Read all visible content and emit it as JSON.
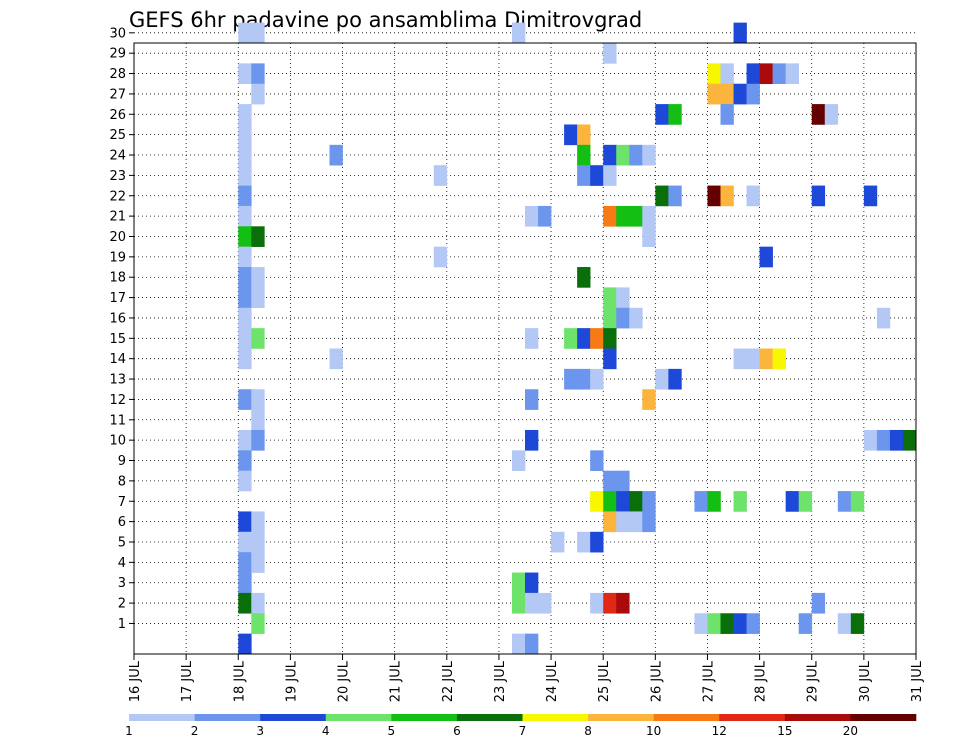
{
  "chart_data": {
    "type": "heatmap",
    "title": "GEFS 6hr padavine po ansamblima Dimitrovgrad",
    "xlabel": "",
    "ylabel": "",
    "x_ticks": [
      "16 JUL",
      "17 JUL",
      "18 JUL",
      "19 JUL",
      "20 JUL",
      "21 JUL",
      "22 JUL",
      "23 JUL",
      "24 JUL",
      "25 JUL",
      "26 JUL",
      "27 JUL",
      "28 JUL",
      "29 JUL",
      "30 JUL",
      "31 JUL"
    ],
    "y_ticks": [
      "1",
      "2",
      "3",
      "4",
      "5",
      "6",
      "7",
      "8",
      "9",
      "10",
      "11",
      "12",
      "13",
      "14",
      "15",
      "16",
      "17",
      "18",
      "19",
      "20",
      "21",
      "22",
      "23",
      "24",
      "25",
      "26",
      "27",
      "28",
      "29",
      "30"
    ],
    "x_range": [
      "16 JUL 00",
      "31 JUL 00"
    ],
    "y_range": [
      0,
      30
    ],
    "grid": true,
    "legend": "bottom colorbar",
    "colorbar": {
      "ticks": [
        "1",
        "2",
        "3",
        "4",
        "5",
        "6",
        "7",
        "8",
        "10",
        "12",
        "15",
        "20"
      ],
      "colors": [
        "#b4c8f5",
        "#6c96ee",
        "#1e48d8",
        "#6ee36c",
        "#14bf14",
        "#0a6e0a",
        "#f7f700",
        "#fbb43c",
        "#f77a14",
        "#e02814",
        "#aa0a0a",
        "#640000"
      ]
    },
    "cells": [
      {
        "t": "18 JUL 00",
        "member": 30,
        "level": 0
      },
      {
        "t": "18 JUL 06",
        "member": 30,
        "level": 0
      },
      {
        "t": "23 JUL 06",
        "member": 30,
        "level": 0
      },
      {
        "t": "27 JUL 12",
        "member": 30,
        "level": 2
      },
      {
        "t": "25 JUL 00",
        "member": 29,
        "level": 0
      },
      {
        "t": "18 JUL 00",
        "member": 28,
        "level": 0
      },
      {
        "t": "18 JUL 06",
        "member": 28,
        "level": 1
      },
      {
        "t": "27 JUL 00",
        "member": 28,
        "level": 6
      },
      {
        "t": "27 JUL 06",
        "member": 28,
        "level": 0
      },
      {
        "t": "27 JUL 18",
        "member": 28,
        "level": 2
      },
      {
        "t": "28 JUL 00",
        "member": 28,
        "level": 10
      },
      {
        "t": "28 JUL 06",
        "member": 28,
        "level": 1
      },
      {
        "t": "28 JUL 12",
        "member": 28,
        "level": 0
      },
      {
        "t": "18 JUL 06",
        "member": 27,
        "level": 0
      },
      {
        "t": "27 JUL 00",
        "member": 27,
        "level": 7
      },
      {
        "t": "27 JUL 06",
        "member": 27,
        "level": 7
      },
      {
        "t": "27 JUL 12",
        "member": 27,
        "level": 2
      },
      {
        "t": "27 JUL 18",
        "member": 27,
        "level": 1
      },
      {
        "t": "18 JUL 00",
        "member": 26,
        "level": 0
      },
      {
        "t": "26 JUL 00",
        "member": 26,
        "level": 2
      },
      {
        "t": "26 JUL 06",
        "member": 26,
        "level": 4
      },
      {
        "t": "27 JUL 06",
        "member": 26,
        "level": 1
      },
      {
        "t": "29 JUL 00",
        "member": 26,
        "level": 11
      },
      {
        "t": "29 JUL 06",
        "member": 26,
        "level": 0
      },
      {
        "t": "18 JUL 00",
        "member": 25,
        "level": 0
      },
      {
        "t": "24 JUL 06",
        "member": 25,
        "level": 2
      },
      {
        "t": "24 JUL 12",
        "member": 25,
        "level": 7
      },
      {
        "t": "18 JUL 00",
        "member": 24,
        "level": 0
      },
      {
        "t": "19 JUL 18",
        "member": 24,
        "level": 1
      },
      {
        "t": "24 JUL 12",
        "member": 24,
        "level": 4
      },
      {
        "t": "25 JUL 00",
        "member": 24,
        "level": 2
      },
      {
        "t": "25 JUL 06",
        "member": 24,
        "level": 3
      },
      {
        "t": "25 JUL 12",
        "member": 24,
        "level": 1
      },
      {
        "t": "25 JUL 18",
        "member": 24,
        "level": 0
      },
      {
        "t": "18 JUL 00",
        "member": 23,
        "level": 0
      },
      {
        "t": "21 JUL 18",
        "member": 23,
        "level": 0
      },
      {
        "t": "24 JUL 12",
        "member": 23,
        "level": 1
      },
      {
        "t": "24 JUL 18",
        "member": 23,
        "level": 2
      },
      {
        "t": "25 JUL 00",
        "member": 23,
        "level": 0
      },
      {
        "t": "18 JUL 00",
        "member": 22,
        "level": 1
      },
      {
        "t": "26 JUL 00",
        "member": 22,
        "level": 5
      },
      {
        "t": "26 JUL 06",
        "member": 22,
        "level": 1
      },
      {
        "t": "27 JUL 00",
        "member": 22,
        "level": 11
      },
      {
        "t": "27 JUL 06",
        "member": 22,
        "level": 7
      },
      {
        "t": "27 JUL 18",
        "member": 22,
        "level": 0
      },
      {
        "t": "29 JUL 00",
        "member": 22,
        "level": 2
      },
      {
        "t": "30 JUL 00",
        "member": 22,
        "level": 2
      },
      {
        "t": "31 JUL 00",
        "member": 22,
        "level": 0
      },
      {
        "t": "18 JUL 00",
        "member": 21,
        "level": 0
      },
      {
        "t": "23 JUL 12",
        "member": 21,
        "level": 0
      },
      {
        "t": "23 JUL 18",
        "member": 21,
        "level": 1
      },
      {
        "t": "25 JUL 00",
        "member": 21,
        "level": 8
      },
      {
        "t": "25 JUL 06",
        "member": 21,
        "level": 4
      },
      {
        "t": "25 JUL 12",
        "member": 21,
        "level": 4
      },
      {
        "t": "25 JUL 18",
        "member": 21,
        "level": 0
      },
      {
        "t": "18 JUL 00",
        "member": 20,
        "level": 4
      },
      {
        "t": "18 JUL 06",
        "member": 20,
        "level": 5
      },
      {
        "t": "25 JUL 18",
        "member": 20,
        "level": 0
      },
      {
        "t": "18 JUL 00",
        "member": 19,
        "level": 0
      },
      {
        "t": "21 JUL 18",
        "member": 19,
        "level": 0
      },
      {
        "t": "28 JUL 00",
        "member": 19,
        "level": 2
      },
      {
        "t": "18 JUL 00",
        "member": 18,
        "level": 1
      },
      {
        "t": "18 JUL 06",
        "member": 18,
        "level": 0
      },
      {
        "t": "24 JUL 12",
        "member": 18,
        "level": 5
      },
      {
        "t": "18 JUL 00",
        "member": 17,
        "level": 1
      },
      {
        "t": "18 JUL 06",
        "member": 17,
        "level": 0
      },
      {
        "t": "25 JUL 00",
        "member": 17,
        "level": 3
      },
      {
        "t": "25 JUL 06",
        "member": 17,
        "level": 0
      },
      {
        "t": "18 JUL 00",
        "member": 16,
        "level": 0
      },
      {
        "t": "25 JUL 00",
        "member": 16,
        "level": 3
      },
      {
        "t": "25 JUL 06",
        "member": 16,
        "level": 1
      },
      {
        "t": "25 JUL 12",
        "member": 16,
        "level": 0
      },
      {
        "t": "30 JUL 06",
        "member": 16,
        "level": 0
      },
      {
        "t": "18 JUL 00",
        "member": 15,
        "level": 0
      },
      {
        "t": "18 JUL 06",
        "member": 15,
        "level": 3
      },
      {
        "t": "23 JUL 12",
        "member": 15,
        "level": 0
      },
      {
        "t": "24 JUL 06",
        "member": 15,
        "level": 3
      },
      {
        "t": "24 JUL 12",
        "member": 15,
        "level": 2
      },
      {
        "t": "24 JUL 18",
        "member": 15,
        "level": 8
      },
      {
        "t": "25 JUL 00",
        "member": 15,
        "level": 5
      },
      {
        "t": "18 JUL 00",
        "member": 14,
        "level": 0
      },
      {
        "t": "19 JUL 18",
        "member": 14,
        "level": 0
      },
      {
        "t": "25 JUL 00",
        "member": 14,
        "level": 2
      },
      {
        "t": "27 JUL 12",
        "member": 14,
        "level": 0
      },
      {
        "t": "27 JUL 18",
        "member": 14,
        "level": 0
      },
      {
        "t": "28 JUL 00",
        "member": 14,
        "level": 7
      },
      {
        "t": "28 JUL 06",
        "member": 14,
        "level": 6
      },
      {
        "t": "24 JUL 06",
        "member": 13,
        "level": 1
      },
      {
        "t": "24 JUL 12",
        "member": 13,
        "level": 1
      },
      {
        "t": "24 JUL 18",
        "member": 13,
        "level": 0
      },
      {
        "t": "26 JUL 00",
        "member": 13,
        "level": 0
      },
      {
        "t": "26 JUL 06",
        "member": 13,
        "level": 2
      },
      {
        "t": "18 JUL 00",
        "member": 12,
        "level": 1
      },
      {
        "t": "18 JUL 06",
        "member": 12,
        "level": 0
      },
      {
        "t": "23 JUL 12",
        "member": 12,
        "level": 1
      },
      {
        "t": "25 JUL 18",
        "member": 12,
        "level": 7
      },
      {
        "t": "18 JUL 06",
        "member": 11,
        "level": 0
      },
      {
        "t": "18 JUL 00",
        "member": 10,
        "level": 0
      },
      {
        "t": "18 JUL 06",
        "member": 10,
        "level": 1
      },
      {
        "t": "23 JUL 12",
        "member": 10,
        "level": 2
      },
      {
        "t": "30 JUL 00",
        "member": 10,
        "level": 0
      },
      {
        "t": "30 JUL 06",
        "member": 10,
        "level": 1
      },
      {
        "t": "30 JUL 12",
        "member": 10,
        "level": 2
      },
      {
        "t": "30 JUL 18",
        "member": 10,
        "level": 5
      },
      {
        "t": "31 JUL 00",
        "member": 10,
        "level": 9
      },
      {
        "t": "18 JUL 00",
        "member": 9,
        "level": 1
      },
      {
        "t": "23 JUL 06",
        "member": 9,
        "level": 0
      },
      {
        "t": "24 JUL 18",
        "member": 9,
        "level": 1
      },
      {
        "t": "18 JUL 00",
        "member": 8,
        "level": 0
      },
      {
        "t": "25 JUL 00",
        "member": 8,
        "level": 1
      },
      {
        "t": "25 JUL 06",
        "member": 8,
        "level": 1
      },
      {
        "t": "31 JUL 00",
        "member": 8,
        "level": 0
      },
      {
        "t": "24 JUL 18",
        "member": 7,
        "level": 6
      },
      {
        "t": "25 JUL 00",
        "member": 7,
        "level": 4
      },
      {
        "t": "25 JUL 06",
        "member": 7,
        "level": 2
      },
      {
        "t": "25 JUL 12",
        "member": 7,
        "level": 5
      },
      {
        "t": "25 JUL 18",
        "member": 7,
        "level": 1
      },
      {
        "t": "26 JUL 18",
        "member": 7,
        "level": 1
      },
      {
        "t": "27 JUL 00",
        "member": 7,
        "level": 4
      },
      {
        "t": "27 JUL 12",
        "member": 7,
        "level": 3
      },
      {
        "t": "28 JUL 12",
        "member": 7,
        "level": 2
      },
      {
        "t": "28 JUL 18",
        "member": 7,
        "level": 3
      },
      {
        "t": "29 JUL 12",
        "member": 7,
        "level": 1
      },
      {
        "t": "29 JUL 18",
        "member": 7,
        "level": 3
      },
      {
        "t": "18 JUL 00",
        "member": 6,
        "level": 2
      },
      {
        "t": "18 JUL 06",
        "member": 6,
        "level": 0
      },
      {
        "t": "25 JUL 00",
        "member": 6,
        "level": 7
      },
      {
        "t": "25 JUL 06",
        "member": 6,
        "level": 0
      },
      {
        "t": "25 JUL 12",
        "member": 6,
        "level": 0
      },
      {
        "t": "25 JUL 18",
        "member": 6,
        "level": 1
      },
      {
        "t": "18 JUL 00",
        "member": 5,
        "level": 0
      },
      {
        "t": "18 JUL 06",
        "member": 5,
        "level": 0
      },
      {
        "t": "24 JUL 00",
        "member": 5,
        "level": 0
      },
      {
        "t": "24 JUL 12",
        "member": 5,
        "level": 0
      },
      {
        "t": "24 JUL 18",
        "member": 5,
        "level": 2
      },
      {
        "t": "18 JUL 00",
        "member": 4,
        "level": 1
      },
      {
        "t": "18 JUL 06",
        "member": 4,
        "level": 0
      },
      {
        "t": "31 JUL 00",
        "member": 4,
        "level": 1
      },
      {
        "t": "18 JUL 00",
        "member": 3,
        "level": 1
      },
      {
        "t": "23 JUL 06",
        "member": 3,
        "level": 3
      },
      {
        "t": "23 JUL 12",
        "member": 3,
        "level": 2
      },
      {
        "t": "18 JUL 00",
        "member": 2,
        "level": 5
      },
      {
        "t": "18 JUL 06",
        "member": 2,
        "level": 0
      },
      {
        "t": "23 JUL 06",
        "member": 2,
        "level": 3
      },
      {
        "t": "23 JUL 12",
        "member": 2,
        "level": 0
      },
      {
        "t": "23 JUL 18",
        "member": 2,
        "level": 0
      },
      {
        "t": "24 JUL 18",
        "member": 2,
        "level": 0
      },
      {
        "t": "25 JUL 00",
        "member": 2,
        "level": 9
      },
      {
        "t": "25 JUL 06",
        "member": 2,
        "level": 10
      },
      {
        "t": "29 JUL 00",
        "member": 2,
        "level": 1
      },
      {
        "t": "18 JUL 06",
        "member": 1,
        "level": 3
      },
      {
        "t": "26 JUL 18",
        "member": 1,
        "level": 0
      },
      {
        "t": "27 JUL 00",
        "member": 1,
        "level": 3
      },
      {
        "t": "27 JUL 06",
        "member": 1,
        "level": 5
      },
      {
        "t": "27 JUL 12",
        "member": 1,
        "level": 2
      },
      {
        "t": "27 JUL 18",
        "member": 1,
        "level": 1
      },
      {
        "t": "28 JUL 18",
        "member": 1,
        "level": 1
      },
      {
        "t": "29 JUL 12",
        "member": 1,
        "level": 0
      },
      {
        "t": "29 JUL 18",
        "member": 1,
        "level": 5
      },
      {
        "t": "18 JUL 00",
        "member": 0,
        "level": 2
      },
      {
        "t": "23 JUL 06",
        "member": 0,
        "level": 0
      },
      {
        "t": "23 JUL 12",
        "member": 0,
        "level": 1
      }
    ]
  }
}
